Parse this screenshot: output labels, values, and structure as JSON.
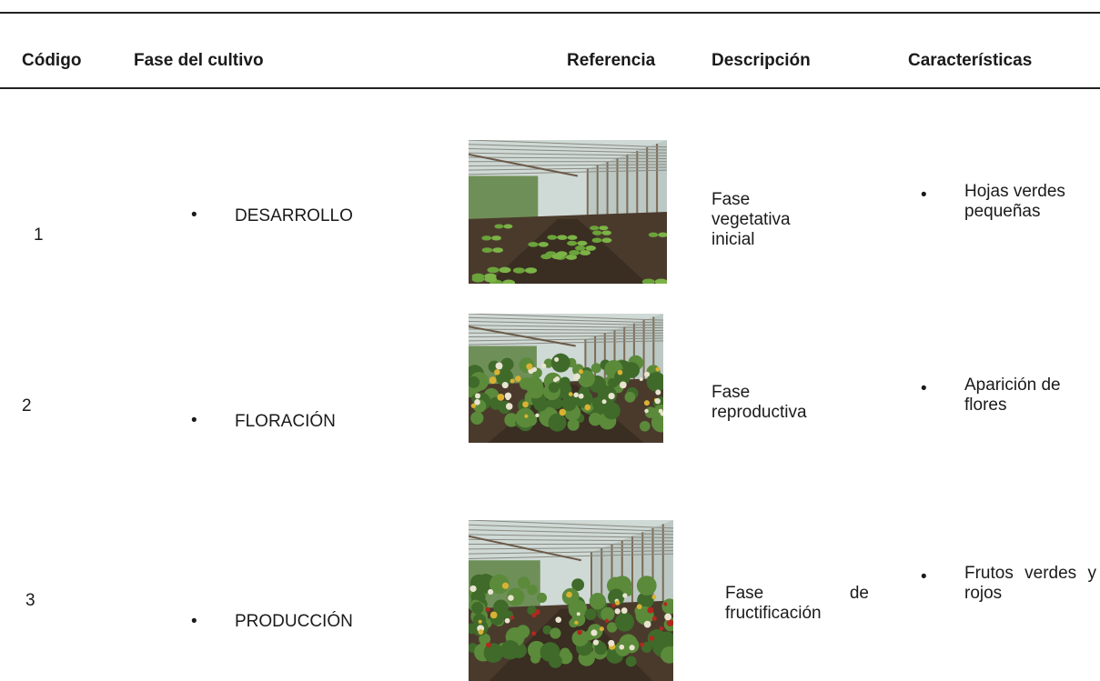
{
  "header": {
    "columns": [
      "Código",
      "Fase del cultivo",
      "Referencia",
      "Descripción",
      "Características"
    ]
  },
  "rows": [
    {
      "code": "1",
      "phase": "DESARROLLO",
      "description": "Fase vegetativa inicial",
      "characteristics": "Hojas verdes pequeñas"
    },
    {
      "code": "2",
      "phase": "FLORACIÓN",
      "description": "Fase reproductiva",
      "characteristics": "Aparición de flores"
    },
    {
      "code": "3",
      "phase": "PRODUCCIÓN",
      "description": "Fase de fructificación",
      "characteristics": "Frutos verdes y rojos"
    }
  ]
}
